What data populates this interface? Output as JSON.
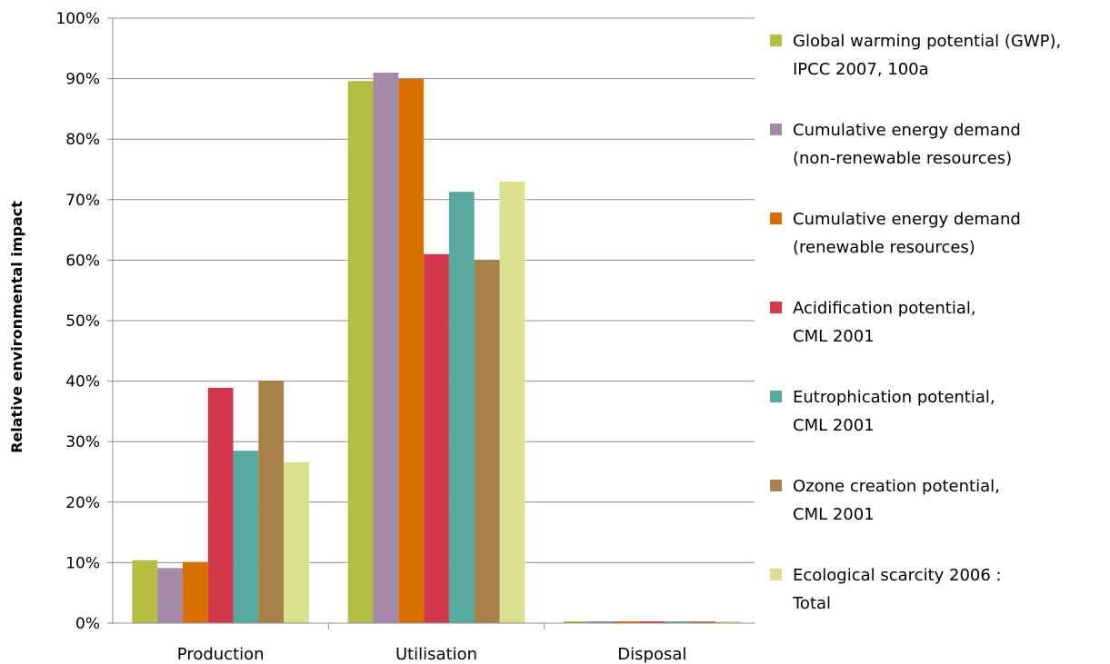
{
  "chart_data": {
    "type": "bar",
    "title": "",
    "xlabel": "",
    "ylabel": "Relative environmental impact",
    "ylim": [
      0,
      100
    ],
    "y_ticks": [
      "0%",
      "10%",
      "20%",
      "30%",
      "40%",
      "50%",
      "60%",
      "70%",
      "80%",
      "90%",
      "100%"
    ],
    "grid": "horizontal",
    "legend_position": "right",
    "categories": [
      "Production",
      "Utilisation",
      "Disposal"
    ],
    "series": [
      {
        "name": "Global warming potential (GWP), IPCC 2007, 100a",
        "legend_lines": [
          "Global warming potential (GWP),",
          "IPCC 2007, 100a"
        ],
        "color": "#b5bd43",
        "values": [
          10.4,
          89.6,
          0.3
        ]
      },
      {
        "name": "Cumulative energy demand (non-renewable resources)",
        "legend_lines": [
          "Cumulative energy demand",
          "(non-renewable resources)"
        ],
        "color": "#a489a9",
        "values": [
          9.1,
          91.0,
          0.3
        ]
      },
      {
        "name": "Cumulative energy demand (renewable resources)",
        "legend_lines": [
          "Cumulative energy demand",
          "(renewable resources)"
        ],
        "color": "#d87000",
        "values": [
          10.1,
          90.0,
          0.3
        ]
      },
      {
        "name": "Acidification potential, CML 2001",
        "legend_lines": [
          "Acidification potential,",
          "CML 2001"
        ],
        "color": "#d23a4c",
        "values": [
          38.9,
          61.0,
          0.3
        ]
      },
      {
        "name": "Eutrophication potential, CML 2001",
        "legend_lines": [
          "Eutrophication potential,",
          "CML 2001"
        ],
        "color": "#58a9a0",
        "values": [
          28.5,
          71.3,
          0.3
        ]
      },
      {
        "name": "Ozone creation potential, CML 2001",
        "legend_lines": [
          "Ozone creation potential,",
          "CML 2001"
        ],
        "color": "#a8804a",
        "values": [
          40.1,
          60.0,
          0.3
        ]
      },
      {
        "name": "Ecological scarcity 2006 : Total",
        "legend_lines": [
          "Ecological scarcity 2006 :",
          "Total"
        ],
        "color": "#dbe08e",
        "values": [
          26.6,
          73.0,
          0.3
        ]
      }
    ]
  }
}
